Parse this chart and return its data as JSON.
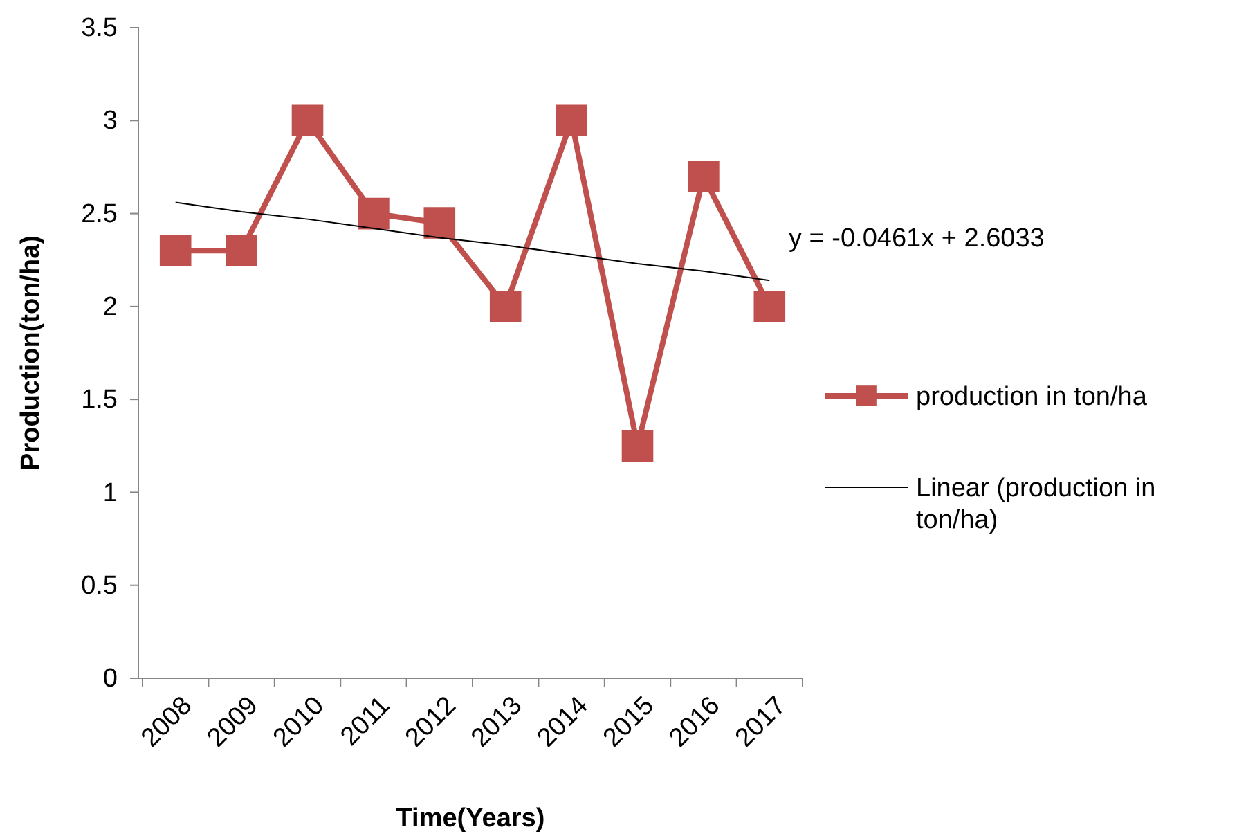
{
  "chart_data": {
    "type": "line",
    "xlabel": "Time(Years)",
    "ylabel": "Production(ton/ha)",
    "categories": [
      "2008",
      "2009",
      "2010",
      "2011",
      "2012",
      "2013",
      "2014",
      "2015",
      "2016",
      "2017"
    ],
    "series": [
      {
        "name": "production in ton/ha",
        "color": "#c0504d",
        "marker": "square",
        "values": [
          2.3,
          2.3,
          3.0,
          2.5,
          2.45,
          2.0,
          3.0,
          1.25,
          2.7,
          2.0
        ]
      },
      {
        "name": "Linear (production in ton/ha)",
        "color": "#000000",
        "marker": "none",
        "values": [
          2.56,
          2.51,
          2.47,
          2.42,
          2.37,
          2.33,
          2.28,
          2.23,
          2.19,
          2.14
        ]
      }
    ],
    "ylim": [
      0,
      3.5
    ],
    "yticks": [
      0,
      0.5,
      1,
      1.5,
      2,
      2.5,
      3,
      3.5
    ],
    "grid": false,
    "legend": "right",
    "annotations": [
      "y = -0.0461x + 2.6033"
    ]
  }
}
